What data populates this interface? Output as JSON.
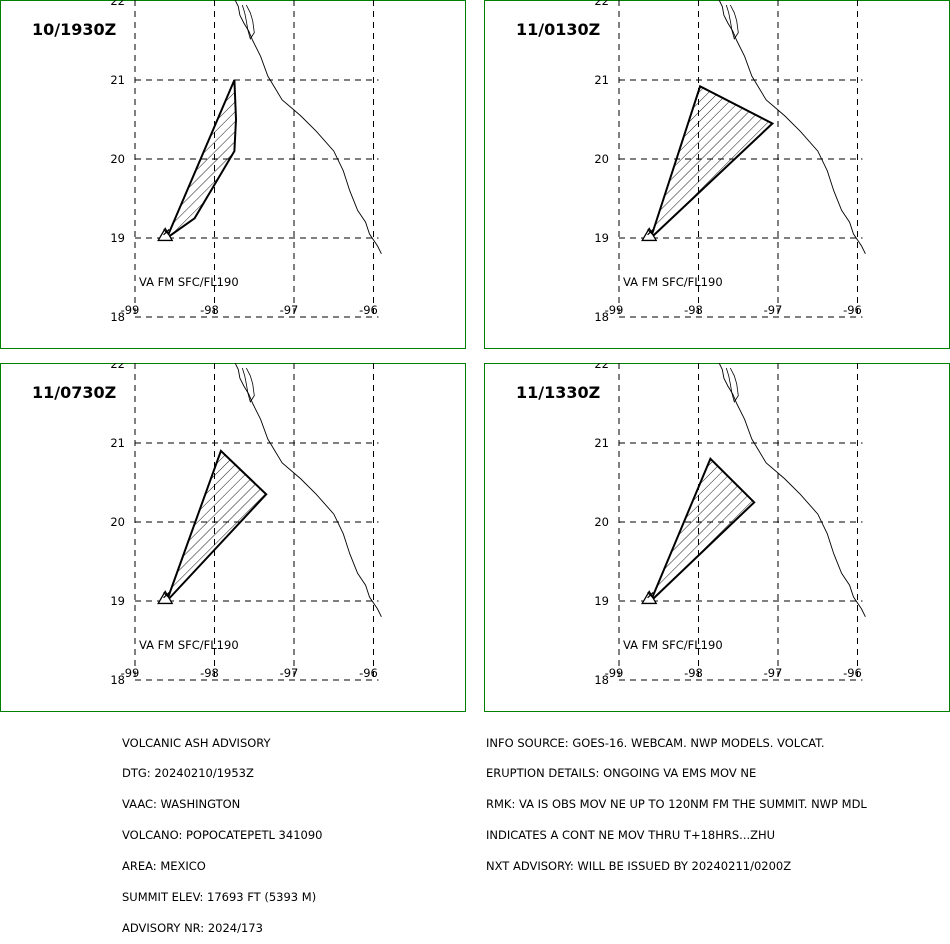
{
  "colors": {
    "frame": "#008000",
    "ink": "#000000",
    "background": "#ffffff"
  },
  "panels": [
    {
      "time": "10/1930Z",
      "label": "VA FM SFC/FL190",
      "polygon": [
        [
          -98.6,
          19.0
        ],
        [
          -97.75,
          21.0
        ],
        [
          -97.73,
          20.5
        ],
        [
          -97.75,
          20.1
        ],
        [
          -98.25,
          19.25
        ],
        [
          -98.6,
          19.0
        ]
      ]
    },
    {
      "time": "11/0130Z",
      "label": "VA FM SFC/FL190",
      "polygon": [
        [
          -98.6,
          19.0
        ],
        [
          -97.98,
          20.92
        ],
        [
          -97.07,
          20.45
        ],
        [
          -98.6,
          19.0
        ]
      ]
    },
    {
      "time": "11/0730Z",
      "label": "VA FM SFC/FL190",
      "polygon": [
        [
          -98.6,
          19.0
        ],
        [
          -97.92,
          20.9
        ],
        [
          -97.35,
          20.35
        ],
        [
          -98.6,
          19.0
        ]
      ]
    },
    {
      "time": "11/1330Z",
      "label": "VA FM SFC/FL190",
      "polygon": [
        [
          -98.6,
          19.0
        ],
        [
          -97.85,
          20.8
        ],
        [
          -97.3,
          20.25
        ],
        [
          -98.6,
          19.0
        ]
      ]
    }
  ],
  "axes": {
    "lat_ticks": [
      {
        "value": 22,
        "label": "22"
      },
      {
        "value": 21,
        "label": "21"
      },
      {
        "value": 20,
        "label": "20"
      },
      {
        "value": 19,
        "label": "19"
      },
      {
        "value": 18,
        "label": "18"
      }
    ],
    "lon_ticks": [
      {
        "value": -99,
        "label": "-99"
      },
      {
        "value": -98,
        "label": "-98"
      },
      {
        "value": -97,
        "label": "-97"
      },
      {
        "value": -96,
        "label": "-96"
      }
    ]
  },
  "volcano": {
    "lon": -98.62,
    "lat": 19.02
  },
  "coastline": [
    [
      -97.75,
      22.03
    ],
    [
      -97.7,
      21.93
    ],
    [
      -97.68,
      21.82
    ],
    [
      -97.63,
      21.72
    ],
    [
      -97.57,
      21.62
    ],
    [
      -97.52,
      21.5
    ],
    [
      -97.42,
      21.3
    ],
    [
      -97.33,
      21.05
    ],
    [
      -97.15,
      20.75
    ],
    [
      -96.92,
      20.55
    ],
    [
      -96.72,
      20.35
    ],
    [
      -96.5,
      20.1
    ],
    [
      -96.38,
      19.85
    ],
    [
      -96.3,
      19.6
    ],
    [
      -96.2,
      19.35
    ],
    [
      -96.1,
      19.2
    ],
    [
      -96.05,
      19.05
    ],
    [
      -95.95,
      18.9
    ],
    [
      -95.9,
      18.8
    ]
  ],
  "lagoon": [
    [
      -97.65,
      21.95
    ],
    [
      -97.62,
      21.85
    ],
    [
      -97.6,
      21.75
    ],
    [
      -97.58,
      21.63
    ],
    [
      -97.55,
      21.52
    ],
    [
      -97.5,
      21.6
    ],
    [
      -97.52,
      21.75
    ],
    [
      -97.55,
      21.85
    ],
    [
      -97.6,
      21.95
    ]
  ],
  "advisory_left": [
    "VOLCANIC ASH ADVISORY",
    "DTG: 20240210/1953Z",
    "VAAC: WASHINGTON",
    "VOLCANO: POPOCATEPETL 341090",
    "AREA: MEXICO",
    "SUMMIT ELEV: 17693 FT (5393 M)",
    "ADVISORY NR: 2024/173"
  ],
  "advisory_right": [
    "INFO SOURCE: GOES-16. WEBCAM. NWP MODELS. VOLCAT.",
    "ERUPTION DETAILS: ONGOING VA EMS MOV NE",
    "RMK: VA IS OBS MOV NE UP TO 120NM FM THE SUMMIT. NWP MDL",
    "INDICATES A CONT NE MOV THRU T+18HRS...ZHU",
    "NXT ADVISORY: WILL BE ISSUED BY 20240211/0200Z"
  ]
}
